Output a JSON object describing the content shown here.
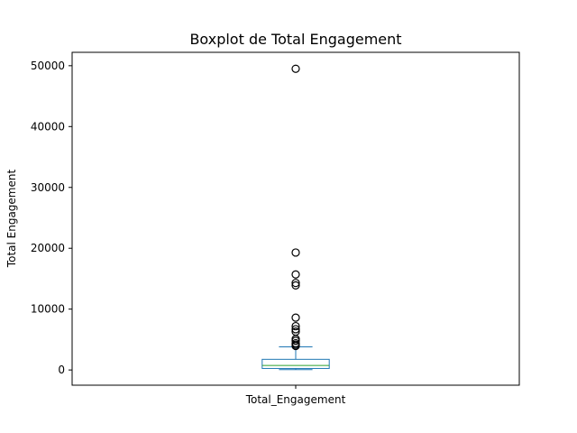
{
  "chart_data": {
    "type": "boxplot",
    "title": "Boxplot de Total Engagement",
    "xlabel": "",
    "ylabel": "Total Engagement",
    "ylim": [
      -2500,
      52200
    ],
    "yticks": [
      0,
      10000,
      20000,
      30000,
      40000,
      50000
    ],
    "categories": [
      "Total_Engagement"
    ],
    "boxes": [
      {
        "category": "Total_Engagement",
        "whisker_low": 50,
        "q1": 250,
        "median": 750,
        "q3": 1750,
        "whisker_high": 3800,
        "outliers": [
          3950,
          4150,
          4400,
          4800,
          5100,
          6300,
          6700,
          7200,
          8600,
          13900,
          14300,
          15700,
          19300,
          49500
        ]
      }
    ],
    "grid": false,
    "colors": {
      "box": "#1f77b4",
      "median": "#2ca02c",
      "outlier": "#000000",
      "axes": "#000000"
    }
  }
}
